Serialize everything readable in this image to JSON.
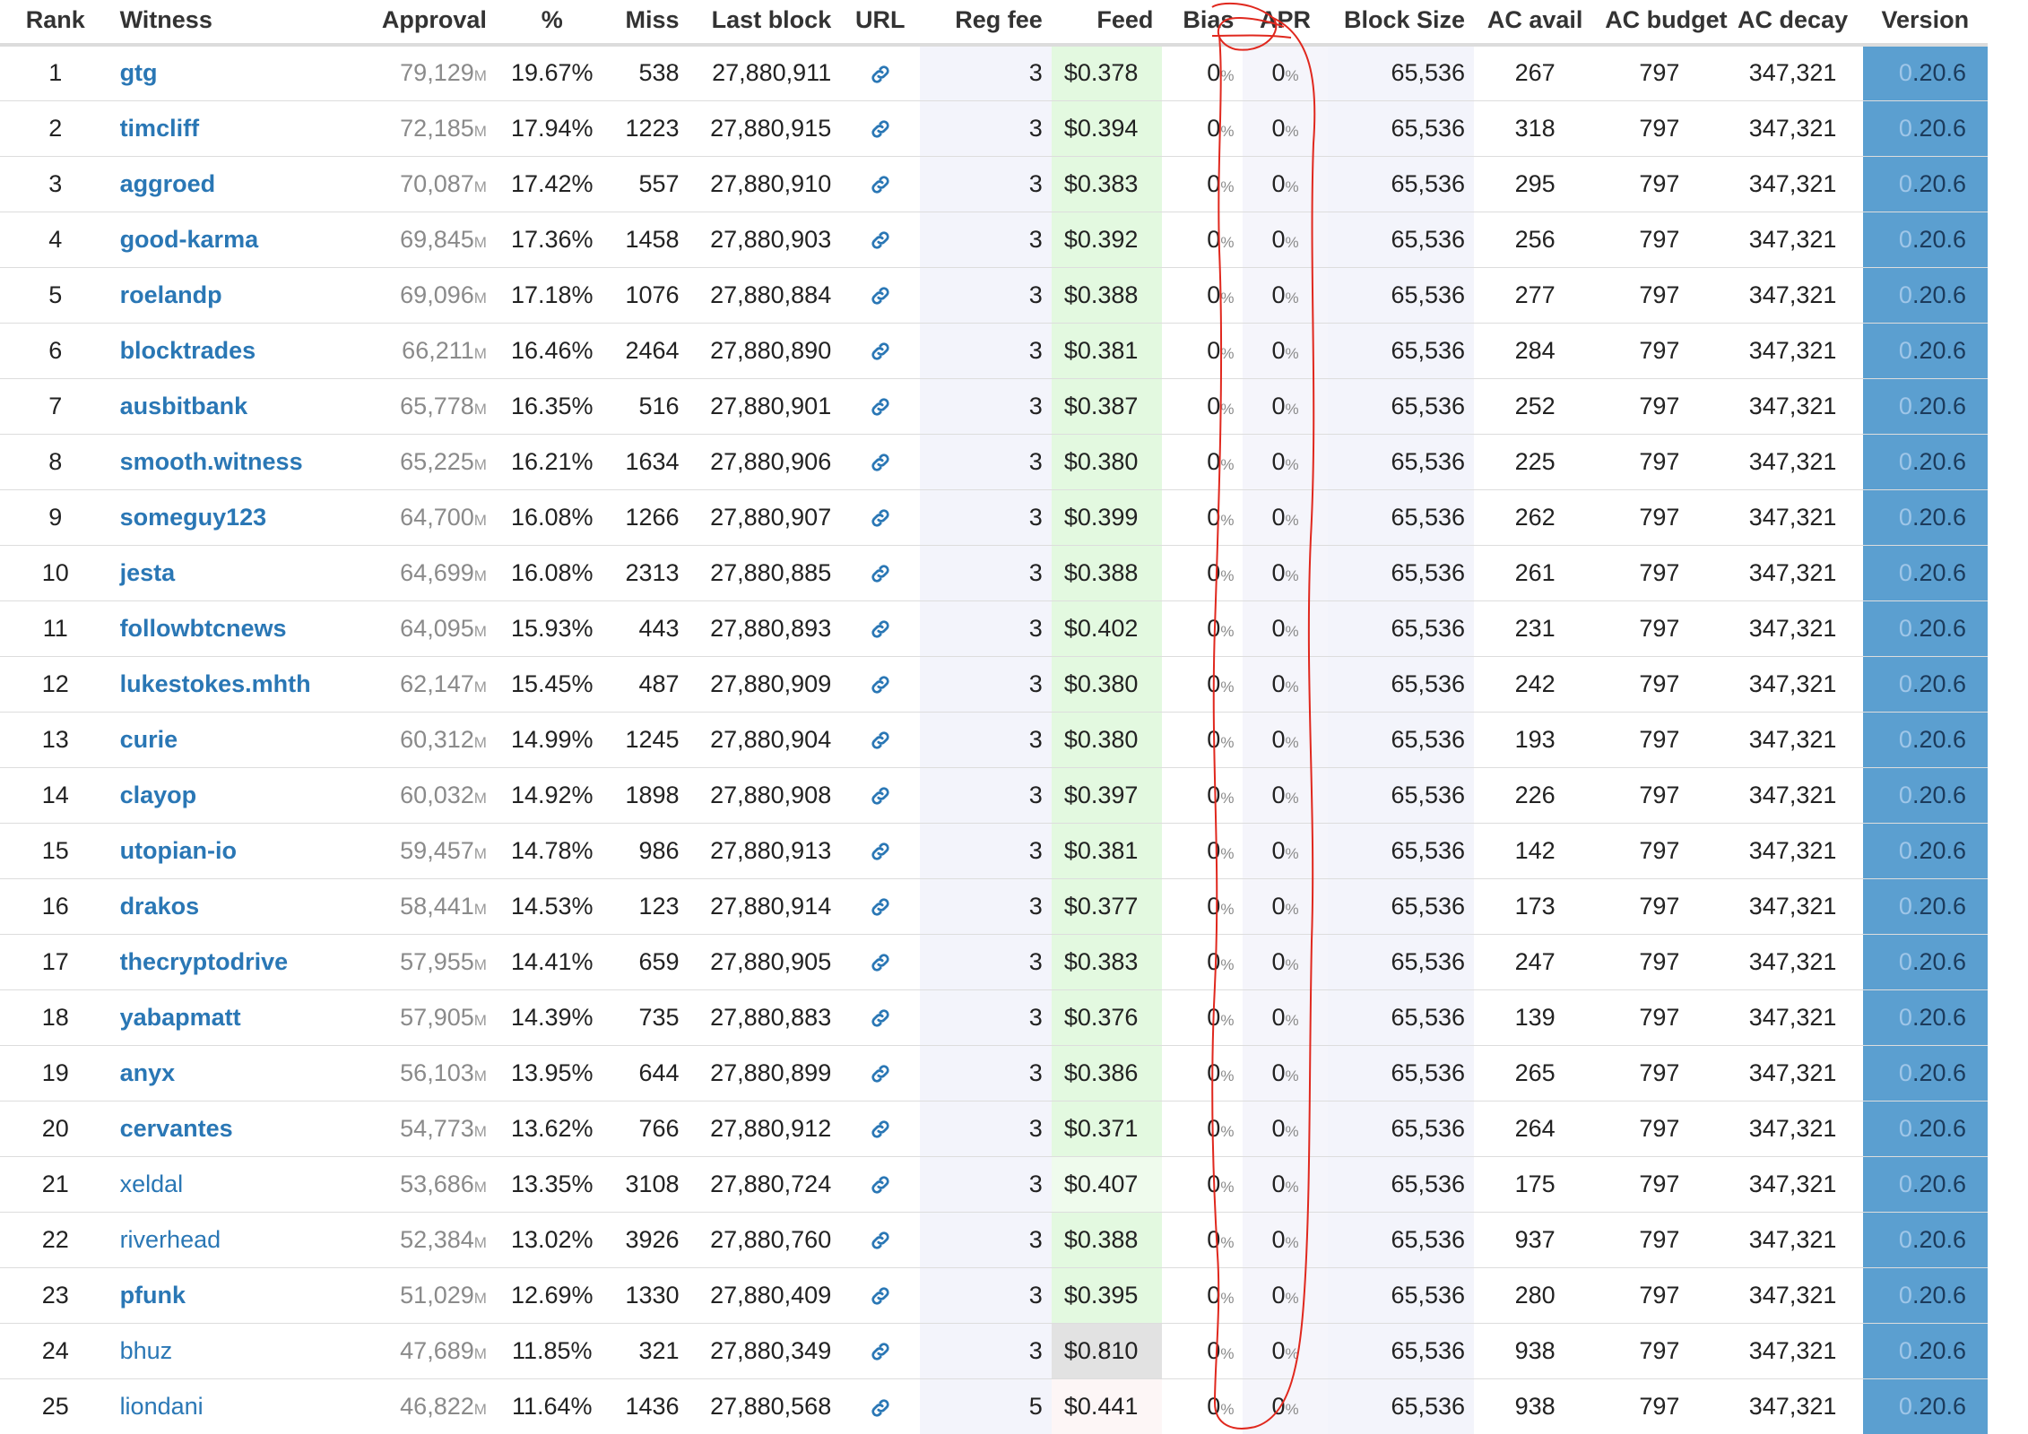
{
  "headers": {
    "rank": "Rank",
    "witness": "Witness",
    "approval": "Approval",
    "pct": "%",
    "miss": "Miss",
    "last_block": "Last block",
    "url": "URL",
    "reg_fee": "Reg fee",
    "feed": "Feed",
    "bias": "Bias",
    "apr": "APR",
    "block_size": "Block Size",
    "ac_avail": "AC avail",
    "ac_budget": "AC budget",
    "ac_decay": "AC decay",
    "version": "Version"
  },
  "units": {
    "approval": "M",
    "percent": "%"
  },
  "colors": {
    "link": "#2a77b5",
    "feed_green": "#e3f9e0",
    "feed_grey": "#e2e2e2",
    "version_bg": "#5b9fd0",
    "annotation": "#e0281e"
  },
  "rows": [
    {
      "rank": "1",
      "witness": "gtg",
      "bold": true,
      "approval": "79,129",
      "pct": "19.67%",
      "miss": "538",
      "last_block": "27,880,911",
      "reg_fee": "3",
      "feed": "$0.378",
      "feed_style": "green",
      "bias": "0",
      "apr": "0",
      "block_size": "65,536",
      "ac_avail": "267",
      "ac_budget": "797",
      "ac_decay": "347,321",
      "version_prefix": "0",
      "version_rest": ".20.6"
    },
    {
      "rank": "2",
      "witness": "timcliff",
      "bold": true,
      "approval": "72,185",
      "pct": "17.94%",
      "miss": "1223",
      "last_block": "27,880,915",
      "reg_fee": "3",
      "feed": "$0.394",
      "feed_style": "green",
      "bias": "0",
      "apr": "0",
      "block_size": "65,536",
      "ac_avail": "318",
      "ac_budget": "797",
      "ac_decay": "347,321",
      "version_prefix": "0",
      "version_rest": ".20.6"
    },
    {
      "rank": "3",
      "witness": "aggroed",
      "bold": true,
      "approval": "70,087",
      "pct": "17.42%",
      "miss": "557",
      "last_block": "27,880,910",
      "reg_fee": "3",
      "feed": "$0.383",
      "feed_style": "green",
      "bias": "0",
      "apr": "0",
      "block_size": "65,536",
      "ac_avail": "295",
      "ac_budget": "797",
      "ac_decay": "347,321",
      "version_prefix": "0",
      "version_rest": ".20.6"
    },
    {
      "rank": "4",
      "witness": "good-karma",
      "bold": true,
      "approval": "69,845",
      "pct": "17.36%",
      "miss": "1458",
      "last_block": "27,880,903",
      "reg_fee": "3",
      "feed": "$0.392",
      "feed_style": "green",
      "bias": "0",
      "apr": "0",
      "block_size": "65,536",
      "ac_avail": "256",
      "ac_budget": "797",
      "ac_decay": "347,321",
      "version_prefix": "0",
      "version_rest": ".20.6"
    },
    {
      "rank": "5",
      "witness": "roelandp",
      "bold": true,
      "approval": "69,096",
      "pct": "17.18%",
      "miss": "1076",
      "last_block": "27,880,884",
      "reg_fee": "3",
      "feed": "$0.388",
      "feed_style": "green",
      "bias": "0",
      "apr": "0",
      "block_size": "65,536",
      "ac_avail": "277",
      "ac_budget": "797",
      "ac_decay": "347,321",
      "version_prefix": "0",
      "version_rest": ".20.6"
    },
    {
      "rank": "6",
      "witness": "blocktrades",
      "bold": true,
      "approval": "66,211",
      "pct": "16.46%",
      "miss": "2464",
      "last_block": "27,880,890",
      "reg_fee": "3",
      "feed": "$0.381",
      "feed_style": "green",
      "bias": "0",
      "apr": "0",
      "block_size": "65,536",
      "ac_avail": "284",
      "ac_budget": "797",
      "ac_decay": "347,321",
      "version_prefix": "0",
      "version_rest": ".20.6"
    },
    {
      "rank": "7",
      "witness": "ausbitbank",
      "bold": true,
      "approval": "65,778",
      "pct": "16.35%",
      "miss": "516",
      "last_block": "27,880,901",
      "reg_fee": "3",
      "feed": "$0.387",
      "feed_style": "green",
      "bias": "0",
      "apr": "0",
      "block_size": "65,536",
      "ac_avail": "252",
      "ac_budget": "797",
      "ac_decay": "347,321",
      "version_prefix": "0",
      "version_rest": ".20.6"
    },
    {
      "rank": "8",
      "witness": "smooth.witness",
      "bold": true,
      "approval": "65,225",
      "pct": "16.21%",
      "miss": "1634",
      "last_block": "27,880,906",
      "reg_fee": "3",
      "feed": "$0.380",
      "feed_style": "green",
      "bias": "0",
      "apr": "0",
      "block_size": "65,536",
      "ac_avail": "225",
      "ac_budget": "797",
      "ac_decay": "347,321",
      "version_prefix": "0",
      "version_rest": ".20.6"
    },
    {
      "rank": "9",
      "witness": "someguy123",
      "bold": true,
      "approval": "64,700",
      "pct": "16.08%",
      "miss": "1266",
      "last_block": "27,880,907",
      "reg_fee": "3",
      "feed": "$0.399",
      "feed_style": "green",
      "bias": "0",
      "apr": "0",
      "block_size": "65,536",
      "ac_avail": "262",
      "ac_budget": "797",
      "ac_decay": "347,321",
      "version_prefix": "0",
      "version_rest": ".20.6"
    },
    {
      "rank": "10",
      "witness": "jesta",
      "bold": true,
      "approval": "64,699",
      "pct": "16.08%",
      "miss": "2313",
      "last_block": "27,880,885",
      "reg_fee": "3",
      "feed": "$0.388",
      "feed_style": "green",
      "bias": "0",
      "apr": "0",
      "block_size": "65,536",
      "ac_avail": "261",
      "ac_budget": "797",
      "ac_decay": "347,321",
      "version_prefix": "0",
      "version_rest": ".20.6"
    },
    {
      "rank": "11",
      "witness": "followbtcnews",
      "bold": true,
      "approval": "64,095",
      "pct": "15.93%",
      "miss": "443",
      "last_block": "27,880,893",
      "reg_fee": "3",
      "feed": "$0.402",
      "feed_style": "green",
      "bias": "0",
      "apr": "0",
      "block_size": "65,536",
      "ac_avail": "231",
      "ac_budget": "797",
      "ac_decay": "347,321",
      "version_prefix": "0",
      "version_rest": ".20.6"
    },
    {
      "rank": "12",
      "witness": "lukestokes.mhth",
      "bold": true,
      "approval": "62,147",
      "pct": "15.45%",
      "miss": "487",
      "last_block": "27,880,909",
      "reg_fee": "3",
      "feed": "$0.380",
      "feed_style": "green",
      "bias": "0",
      "apr": "0",
      "block_size": "65,536",
      "ac_avail": "242",
      "ac_budget": "797",
      "ac_decay": "347,321",
      "version_prefix": "0",
      "version_rest": ".20.6"
    },
    {
      "rank": "13",
      "witness": "curie",
      "bold": true,
      "approval": "60,312",
      "pct": "14.99%",
      "miss": "1245",
      "last_block": "27,880,904",
      "reg_fee": "3",
      "feed": "$0.380",
      "feed_style": "green",
      "bias": "0",
      "apr": "0",
      "block_size": "65,536",
      "ac_avail": "193",
      "ac_budget": "797",
      "ac_decay": "347,321",
      "version_prefix": "0",
      "version_rest": ".20.6"
    },
    {
      "rank": "14",
      "witness": "clayop",
      "bold": true,
      "approval": "60,032",
      "pct": "14.92%",
      "miss": "1898",
      "last_block": "27,880,908",
      "reg_fee": "3",
      "feed": "$0.397",
      "feed_style": "green",
      "bias": "0",
      "apr": "0",
      "block_size": "65,536",
      "ac_avail": "226",
      "ac_budget": "797",
      "ac_decay": "347,321",
      "version_prefix": "0",
      "version_rest": ".20.6"
    },
    {
      "rank": "15",
      "witness": "utopian-io",
      "bold": true,
      "approval": "59,457",
      "pct": "14.78%",
      "miss": "986",
      "last_block": "27,880,913",
      "reg_fee": "3",
      "feed": "$0.381",
      "feed_style": "green",
      "bias": "0",
      "apr": "0",
      "block_size": "65,536",
      "ac_avail": "142",
      "ac_budget": "797",
      "ac_decay": "347,321",
      "version_prefix": "0",
      "version_rest": ".20.6"
    },
    {
      "rank": "16",
      "witness": "drakos",
      "bold": true,
      "approval": "58,441",
      "pct": "14.53%",
      "miss": "123",
      "last_block": "27,880,914",
      "reg_fee": "3",
      "feed": "$0.377",
      "feed_style": "green",
      "bias": "0",
      "apr": "0",
      "block_size": "65,536",
      "ac_avail": "173",
      "ac_budget": "797",
      "ac_decay": "347,321",
      "version_prefix": "0",
      "version_rest": ".20.6"
    },
    {
      "rank": "17",
      "witness": "thecryptodrive",
      "bold": true,
      "approval": "57,955",
      "pct": "14.41%",
      "miss": "659",
      "last_block": "27,880,905",
      "reg_fee": "3",
      "feed": "$0.383",
      "feed_style": "green",
      "bias": "0",
      "apr": "0",
      "block_size": "65,536",
      "ac_avail": "247",
      "ac_budget": "797",
      "ac_decay": "347,321",
      "version_prefix": "0",
      "version_rest": ".20.6"
    },
    {
      "rank": "18",
      "witness": "yabapmatt",
      "bold": true,
      "approval": "57,905",
      "pct": "14.39%",
      "miss": "735",
      "last_block": "27,880,883",
      "reg_fee": "3",
      "feed": "$0.376",
      "feed_style": "green",
      "bias": "0",
      "apr": "0",
      "block_size": "65,536",
      "ac_avail": "139",
      "ac_budget": "797",
      "ac_decay": "347,321",
      "version_prefix": "0",
      "version_rest": ".20.6"
    },
    {
      "rank": "19",
      "witness": "anyx",
      "bold": true,
      "approval": "56,103",
      "pct": "13.95%",
      "miss": "644",
      "last_block": "27,880,899",
      "reg_fee": "3",
      "feed": "$0.386",
      "feed_style": "green",
      "bias": "0",
      "apr": "0",
      "block_size": "65,536",
      "ac_avail": "265",
      "ac_budget": "797",
      "ac_decay": "347,321",
      "version_prefix": "0",
      "version_rest": ".20.6"
    },
    {
      "rank": "20",
      "witness": "cervantes",
      "bold": true,
      "approval": "54,773",
      "pct": "13.62%",
      "miss": "766",
      "last_block": "27,880,912",
      "reg_fee": "3",
      "feed": "$0.371",
      "feed_style": "green",
      "bias": "0",
      "apr": "0",
      "block_size": "65,536",
      "ac_avail": "264",
      "ac_budget": "797",
      "ac_decay": "347,321",
      "version_prefix": "0",
      "version_rest": ".20.6"
    },
    {
      "rank": "21",
      "witness": "xeldal",
      "bold": false,
      "approval": "53,686",
      "pct": "13.35%",
      "miss": "3108",
      "last_block": "27,880,724",
      "reg_fee": "3",
      "feed": "$0.407",
      "feed_style": "green-light",
      "bias": "0",
      "apr": "0",
      "block_size": "65,536",
      "ac_avail": "175",
      "ac_budget": "797",
      "ac_decay": "347,321",
      "version_prefix": "0",
      "version_rest": ".20.6"
    },
    {
      "rank": "22",
      "witness": "riverhead",
      "bold": false,
      "approval": "52,384",
      "pct": "13.02%",
      "miss": "3926",
      "last_block": "27,880,760",
      "reg_fee": "3",
      "feed": "$0.388",
      "feed_style": "green",
      "bias": "0",
      "apr": "0",
      "block_size": "65,536",
      "ac_avail": "937",
      "ac_budget": "797",
      "ac_decay": "347,321",
      "version_prefix": "0",
      "version_rest": ".20.6"
    },
    {
      "rank": "23",
      "witness": "pfunk",
      "bold": true,
      "approval": "51,029",
      "pct": "12.69%",
      "miss": "1330",
      "last_block": "27,880,409",
      "reg_fee": "3",
      "feed": "$0.395",
      "feed_style": "green",
      "bias": "0",
      "apr": "0",
      "block_size": "65,536",
      "ac_avail": "280",
      "ac_budget": "797",
      "ac_decay": "347,321",
      "version_prefix": "0",
      "version_rest": ".20.6"
    },
    {
      "rank": "24",
      "witness": "bhuz",
      "bold": false,
      "approval": "47,689",
      "pct": "11.85%",
      "miss": "321",
      "last_block": "27,880,349",
      "reg_fee": "3",
      "feed": "$0.810",
      "feed_style": "grey",
      "bias": "0",
      "apr": "0",
      "block_size": "65,536",
      "ac_avail": "938",
      "ac_budget": "797",
      "ac_decay": "347,321",
      "version_prefix": "0",
      "version_rest": ".20.6"
    },
    {
      "rank": "25",
      "witness": "liondani",
      "bold": false,
      "approval": "46,822",
      "pct": "11.64%",
      "miss": "1436",
      "last_block": "27,880,568",
      "reg_fee": "5",
      "feed": "$0.441",
      "feed_style": "pink",
      "bias": "0",
      "apr": "0",
      "block_size": "65,536",
      "ac_avail": "938",
      "ac_budget": "797",
      "ac_decay": "347,321",
      "version_prefix": "0",
      "version_rest": ".20.6"
    }
  ]
}
